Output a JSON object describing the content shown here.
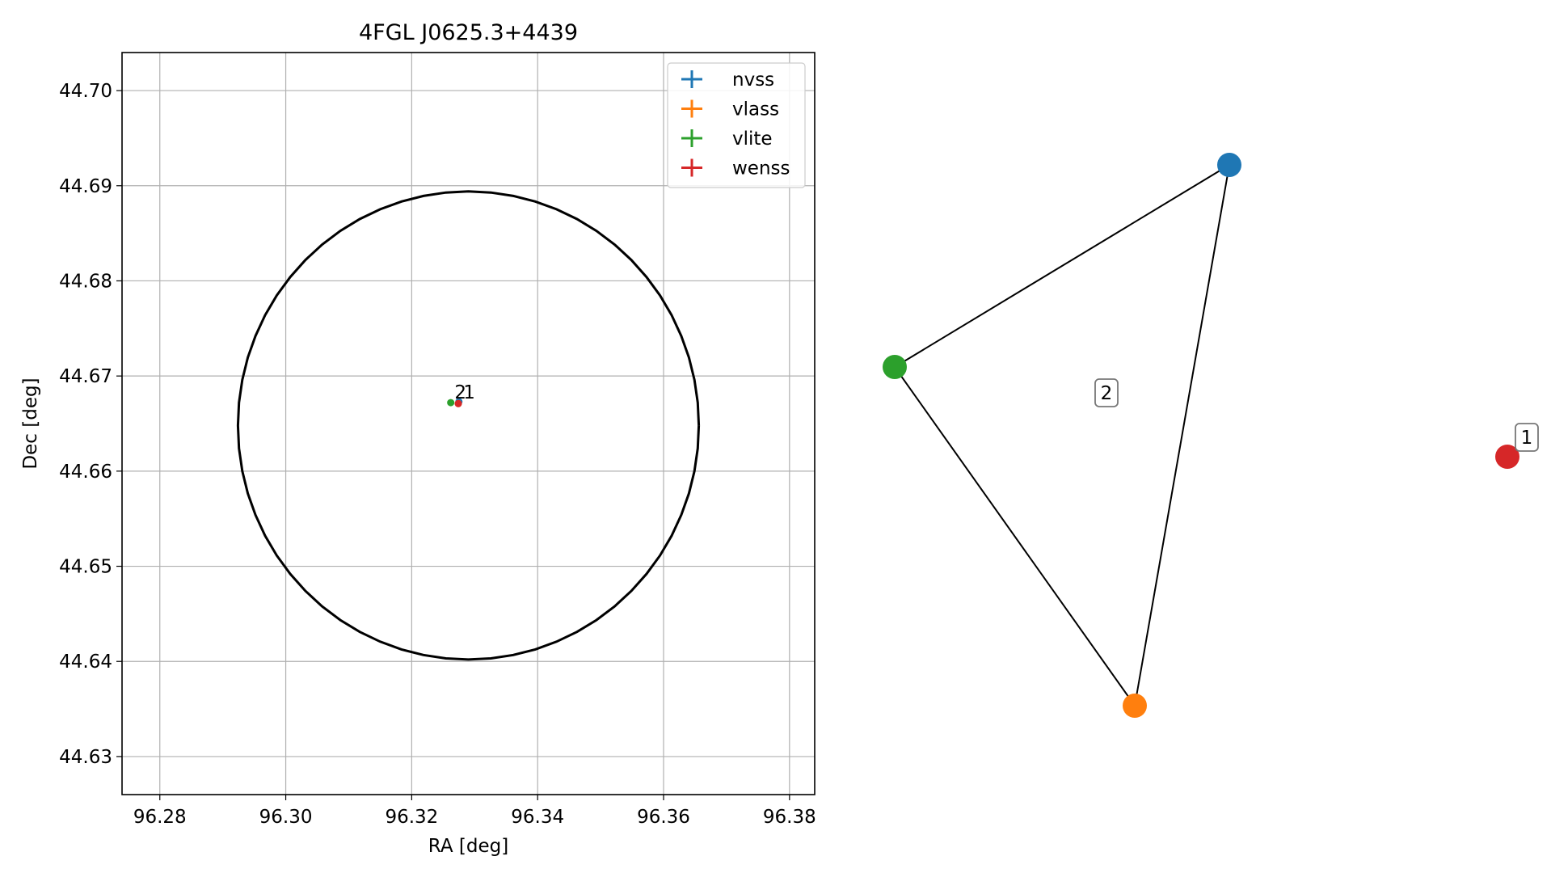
{
  "chart_data": [
    {
      "type": "scatter",
      "title": "4FGL J0625.3+4439",
      "xlabel": "RA [deg]",
      "ylabel": "Dec [deg]",
      "xlim": [
        96.274,
        96.384
      ],
      "ylim": [
        44.626,
        44.704
      ],
      "xticks": [
        "96.28",
        "96.30",
        "96.32",
        "96.34",
        "96.36",
        "96.38"
      ],
      "yticks": [
        "44.63",
        "44.64",
        "44.65",
        "44.66",
        "44.67",
        "44.68",
        "44.69",
        "44.70"
      ],
      "grid": true,
      "legend_position": "upper right",
      "ellipse": {
        "center": [
          96.329,
          44.6648
        ],
        "radius_ra": 0.0366,
        "radius_dec": 0.0246
      },
      "series": [
        {
          "name": "nvss",
          "color": "#1f77b4",
          "x": [
            96.3275
          ],
          "y": [
            44.6673
          ]
        },
        {
          "name": "vlass",
          "color": "#ff7f0e",
          "x": [
            96.3274
          ],
          "y": [
            44.6671
          ]
        },
        {
          "name": "vlite",
          "color": "#2ca02c",
          "x": [
            96.3262
          ],
          "y": [
            44.6672
          ]
        },
        {
          "name": "wenss",
          "color": "#d62728",
          "x": [
            96.3274
          ],
          "y": [
            44.6671
          ]
        }
      ],
      "annotations": [
        {
          "text": "2",
          "x": 96.3268,
          "y": 44.6683
        },
        {
          "text": "1",
          "x": 96.3282,
          "y": 44.6683
        }
      ]
    },
    {
      "type": "network",
      "nodes": [
        {
          "name": "nvss",
          "color": "#1f77b4"
        },
        {
          "name": "vlite",
          "color": "#2ca02c"
        },
        {
          "name": "vlass",
          "color": "#ff7f0e"
        },
        {
          "name": "wenss",
          "color": "#d62728"
        }
      ],
      "edges": [
        [
          "nvss",
          "vlite"
        ],
        [
          "vlite",
          "vlass"
        ],
        [
          "vlass",
          "nvss"
        ]
      ],
      "group_labels": [
        {
          "text": "2",
          "group": [
            "nvss",
            "vlite",
            "vlass"
          ]
        },
        {
          "text": "1",
          "group": [
            "wenss"
          ]
        }
      ]
    }
  ]
}
